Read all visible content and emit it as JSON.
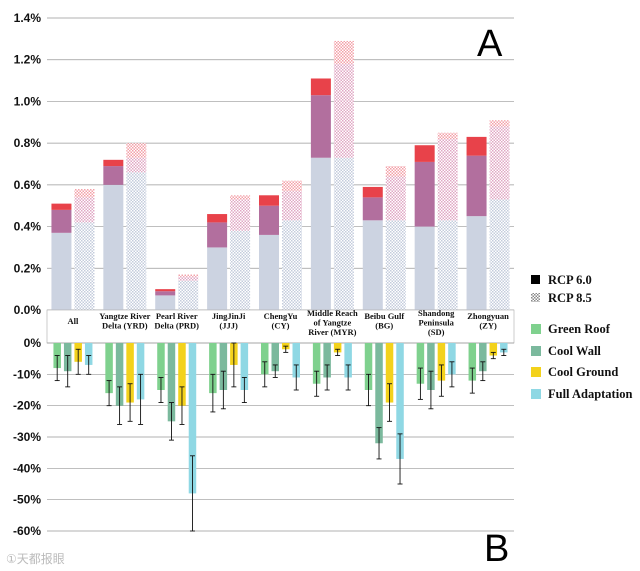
{
  "colors": {
    "base": "#ccd3e1",
    "mid": "#b26f9e",
    "top": "#e8424a",
    "green_roof": "#7fd18e",
    "cool_wall": "#7bb99d",
    "cool_ground": "#f3d21c",
    "full_adaptation": "#8fd8e4"
  },
  "chart_data": [
    {
      "panel": "A",
      "type": "bar",
      "subtype": "stacked",
      "ylim": [
        0,
        1.4
      ],
      "yticks": [
        "0.0%",
        "0.2%",
        "0.4%",
        "0.6%",
        "0.8%",
        "1.0%",
        "1.2%",
        "1.4%"
      ],
      "categories": [
        [
          "All"
        ],
        [
          "Yangtze River",
          "Delta (YRD)"
        ],
        [
          "Pearl River",
          "Delta (PRD)"
        ],
        [
          "JingJinJi",
          "(JJJ)"
        ],
        [
          "ChengYu",
          "(CY)"
        ],
        [
          "Middle Reach",
          "of Yangtze",
          "River (MYR)"
        ],
        [
          "Beibu Gulf",
          "(BG)"
        ],
        [
          "Shandong",
          "Peninsula",
          "(SD)"
        ],
        [
          "Zhongyuan",
          "(ZY)"
        ]
      ],
      "legend": [
        "RCP 6.0",
        "RCP 8.5"
      ],
      "series": [
        {
          "name": "RCP 6.0",
          "segments": [
            [
              0.37,
              0.48,
              0.51
            ],
            [
              0.6,
              0.69,
              0.72
            ],
            [
              0.07,
              0.09,
              0.1
            ],
            [
              0.3,
              0.42,
              0.46
            ],
            [
              0.36,
              0.5,
              0.55
            ],
            [
              0.73,
              1.03,
              1.11
            ],
            [
              0.43,
              0.54,
              0.59
            ],
            [
              0.4,
              0.71,
              0.79
            ],
            [
              0.45,
              0.74,
              0.83
            ]
          ]
        },
        {
          "name": "RCP 8.5",
          "segments": [
            [
              0.42,
              0.54,
              0.58
            ],
            [
              0.66,
              0.73,
              0.8
            ],
            [
              0.14,
              0.16,
              0.17
            ],
            [
              0.38,
              0.53,
              0.55
            ],
            [
              0.43,
              0.57,
              0.62
            ],
            [
              0.73,
              1.18,
              1.29
            ],
            [
              0.43,
              0.64,
              0.69
            ],
            [
              0.43,
              0.82,
              0.85
            ],
            [
              0.53,
              0.88,
              0.91
            ]
          ]
        }
      ]
    },
    {
      "panel": "B",
      "type": "bar",
      "subtype": "grouped_with_error",
      "ylim": [
        -60,
        0
      ],
      "yticks": [
        "0%",
        "-10%",
        "-20%",
        "-30%",
        "-40%",
        "-50%",
        "-60%"
      ],
      "legend": [
        "Green Roof",
        "Cool Wall",
        "Cool Ground",
        "Full Adaptation"
      ],
      "series": [
        {
          "name": "Green Roof",
          "values": [
            -8,
            -16,
            -15,
            -16,
            -10,
            -13,
            -15,
            -13,
            -12
          ],
          "errors": [
            4,
            4,
            4,
            6,
            4,
            4,
            5,
            5,
            4
          ]
        },
        {
          "name": "Cool Wall",
          "values": [
            -9,
            -20,
            -25,
            -15,
            -9,
            -11,
            -32,
            -15,
            -9
          ],
          "errors": [
            5,
            6,
            6,
            6,
            2,
            4,
            5,
            6,
            3
          ]
        },
        {
          "name": "Cool Ground",
          "values": [
            -6,
            -19,
            -20,
            -7,
            -2,
            -3,
            -19,
            -12,
            -4
          ],
          "errors": [
            4,
            6,
            6,
            7,
            1,
            1,
            6,
            5,
            1
          ]
        },
        {
          "name": "Full Adaptation",
          "values": [
            -7,
            -18,
            -48,
            -15,
            -11,
            -11,
            -37,
            -10,
            -3
          ],
          "errors": [
            3,
            8,
            12,
            4,
            4,
            4,
            8,
            4,
            1
          ]
        }
      ]
    }
  ],
  "watermark": "①天都报眼",
  "panel_labels": [
    "A",
    "B"
  ]
}
